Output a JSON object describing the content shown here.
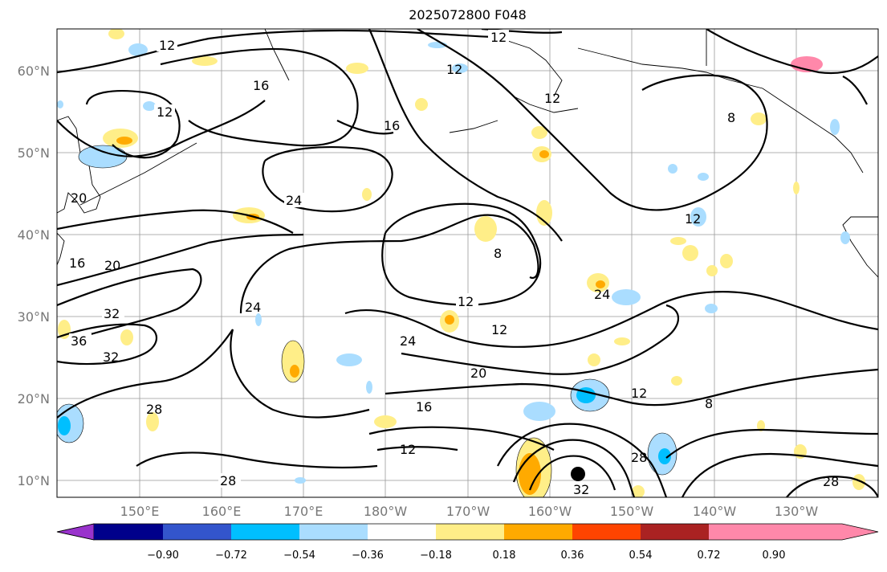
{
  "title": "2025072800 F048",
  "map": {
    "lat_labels": [
      "60°N",
      "50°N",
      "40°N",
      "30°N",
      "20°N",
      "10°N"
    ],
    "lon_labels": [
      "150°E",
      "160°E",
      "170°E",
      "180°W",
      "170°W",
      "160°W",
      "150°W",
      "140°W",
      "130°W"
    ],
    "contour_labels": [
      "12",
      "12",
      "12",
      "16",
      "16",
      "12",
      "12",
      "8",
      "20",
      "24",
      "16",
      "20",
      "8",
      "12",
      "24",
      "32",
      "36",
      "32",
      "24",
      "12",
      "12",
      "28",
      "28",
      "24",
      "20",
      "16",
      "12",
      "12",
      "8",
      "28",
      "28",
      "32"
    ]
  },
  "colorbar": {
    "colors": [
      "#9933cc",
      "#00008b",
      "#3355cc",
      "#00bfff",
      "#aaddff",
      "#ffffff",
      "#ffee88",
      "#ffaa00",
      "#ff4400",
      "#aa2222",
      "#ff88aa"
    ],
    "tick_labels": [
      "−0.90",
      "−0.72",
      "−0.54",
      "−0.36",
      "−0.18",
      "0.18",
      "0.36",
      "0.54",
      "0.72",
      "0.90"
    ]
  }
}
